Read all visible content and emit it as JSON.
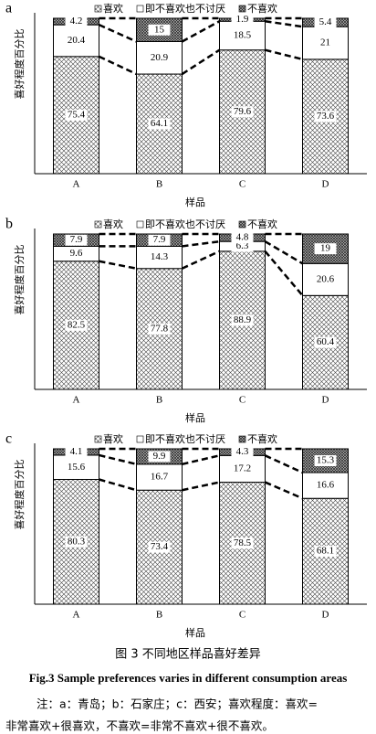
{
  "chart_data": [
    {
      "type": "stacked_bar",
      "label": "a",
      "x_label": "样品",
      "y_label": "喜好程度百分比",
      "categories": [
        "A",
        "B",
        "C",
        "D"
      ],
      "ylim": [
        0,
        100
      ],
      "series": [
        {
          "name": "喜欢",
          "values": [
            75.4,
            64.1,
            79.6,
            73.6
          ]
        },
        {
          "name": "即不喜欢也不讨厌",
          "values": [
            20.4,
            20.9,
            18.5,
            21
          ]
        },
        {
          "name": "不喜欢",
          "values": [
            4.2,
            15,
            1.9,
            5.4
          ]
        }
      ]
    },
    {
      "type": "stacked_bar",
      "label": "b",
      "x_label": "样品",
      "y_label": "喜好程度百分比",
      "categories": [
        "A",
        "B",
        "C",
        "D"
      ],
      "ylim": [
        0,
        100
      ],
      "series": [
        {
          "name": "喜欢",
          "values": [
            82.5,
            77.8,
            88.9,
            60.4
          ]
        },
        {
          "name": "即不喜欢也不讨厌",
          "values": [
            9.6,
            14.3,
            6.3,
            20.6
          ]
        },
        {
          "name": "不喜欢",
          "values": [
            7.9,
            7.9,
            4.8,
            19
          ]
        }
      ]
    },
    {
      "type": "stacked_bar",
      "label": "c",
      "x_label": "样品",
      "y_label": "喜好程度百分比",
      "categories": [
        "A",
        "B",
        "C",
        "D"
      ],
      "ylim": [
        0,
        100
      ],
      "series": [
        {
          "name": "喜欢",
          "values": [
            80.3,
            73.4,
            78.5,
            68.1
          ]
        },
        {
          "name": "即不喜欢也不讨厌",
          "values": [
            15.6,
            16.7,
            17.2,
            16.6
          ]
        },
        {
          "name": "不喜欢",
          "values": [
            4.1,
            9.9,
            4.3,
            15.3
          ]
        }
      ]
    }
  ],
  "caption": {
    "cn": "图 3  不同地区样品喜好差异",
    "en": "Fig.3 Sample preferences varies in different consumption areas",
    "note1": "注：a：青岛；b：石家庄；c：西安；喜欢程度：喜欢=",
    "note2": "非常喜欢+很喜欢，不喜欢=非常不喜欢+很不喜欢。"
  }
}
